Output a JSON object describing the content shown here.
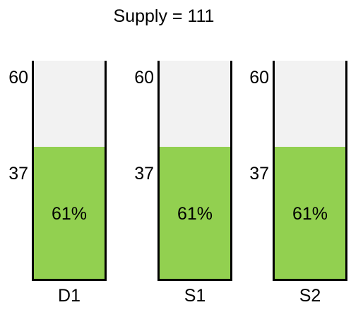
{
  "title": "Supply = 111",
  "max_label": "60",
  "level_label": "37",
  "fill_color": "#92d050",
  "track_color": "#f2f2f2",
  "gauges": [
    {
      "label": "D1",
      "percent_label": "61%",
      "fill_fraction": 0.61
    },
    {
      "label": "S1",
      "percent_label": "61%",
      "fill_fraction": 0.61
    },
    {
      "label": "S2",
      "percent_label": "61%",
      "fill_fraction": 0.61
    }
  ]
}
